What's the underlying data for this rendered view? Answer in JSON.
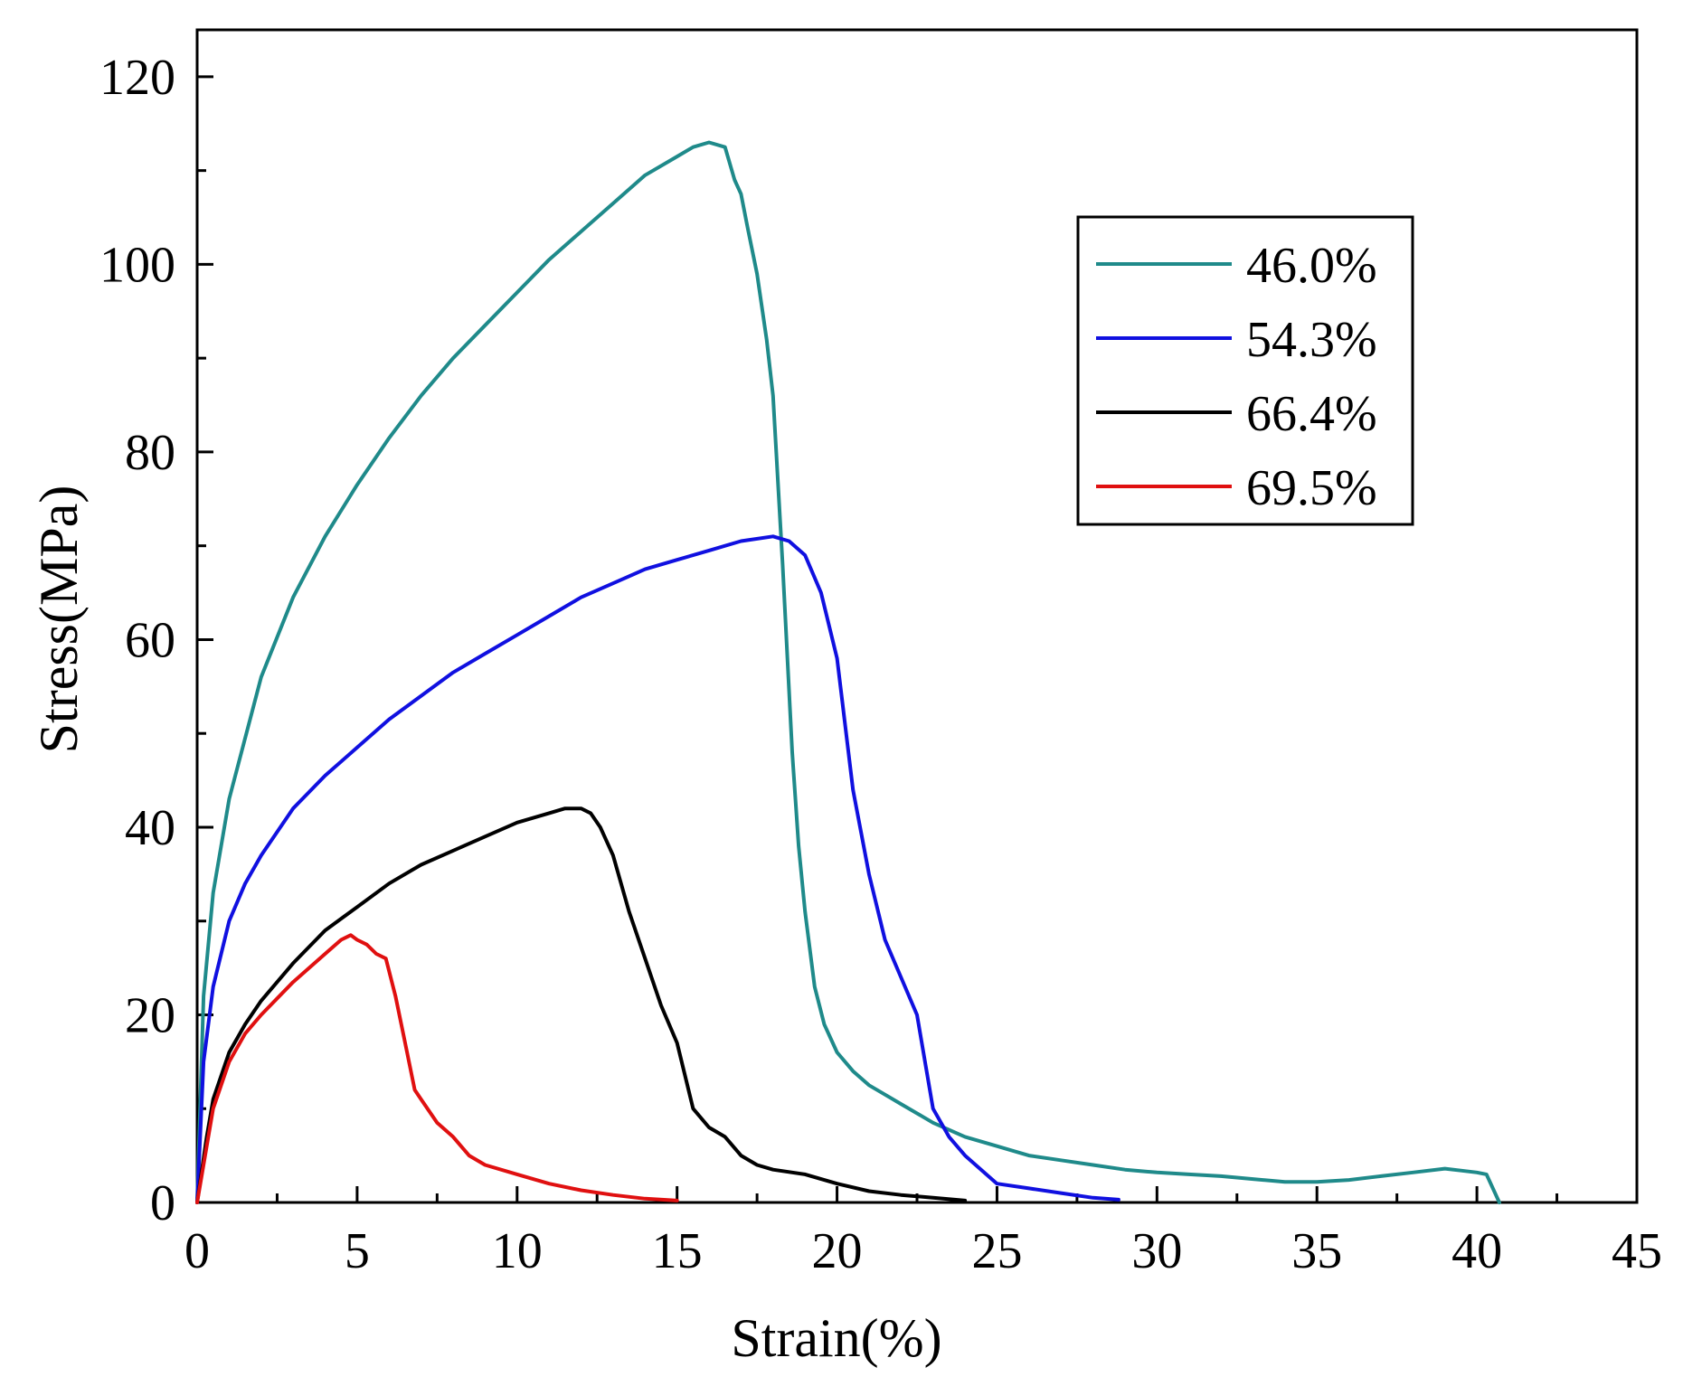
{
  "chart_data": {
    "type": "line",
    "title": "",
    "xlabel": "Strain(%)",
    "ylabel": "Stress(MPa)",
    "xlim": [
      0,
      45
    ],
    "ylim": [
      0,
      125
    ],
    "xticks": [
      0,
      5,
      10,
      15,
      20,
      25,
      30,
      35,
      40,
      45
    ],
    "yticks": [
      0,
      20,
      40,
      60,
      80,
      100,
      120
    ],
    "grid": false,
    "legend_position": "top-right",
    "series": [
      {
        "name": "46.0%",
        "color": "#1f8a8a",
        "x": [
          0,
          0.2,
          0.5,
          1,
          2,
          3,
          4,
          5,
          6,
          7,
          8,
          9,
          10,
          11,
          12,
          13,
          14,
          15,
          15.5,
          16,
          16.5,
          16.8,
          17,
          17.2,
          17.5,
          17.8,
          18,
          18.3,
          18.6,
          18.8,
          19,
          19.3,
          19.6,
          20,
          20.5,
          21,
          21.5,
          22,
          23,
          24,
          25,
          26,
          27,
          28,
          29,
          30,
          31,
          32,
          33,
          34,
          35,
          36,
          37,
          38,
          39,
          39.5,
          40,
          40.3,
          40.5,
          40.7
        ],
        "y": [
          0,
          22,
          33,
          43,
          56,
          64.5,
          71,
          76.5,
          81.5,
          86,
          90,
          93.5,
          97,
          100.5,
          103.5,
          106.5,
          109.5,
          111.5,
          112.5,
          113,
          112.5,
          109,
          107.5,
          104,
          99,
          92,
          86,
          68,
          48,
          38,
          31,
          23,
          19,
          16,
          14,
          12.5,
          11.5,
          10.5,
          8.5,
          7,
          6,
          5,
          4.5,
          4,
          3.5,
          3.2,
          3,
          2.8,
          2.5,
          2.2,
          2.2,
          2.4,
          2.8,
          3.2,
          3.6,
          3.4,
          3.2,
          3.0,
          1.5,
          0
        ]
      },
      {
        "name": "54.3%",
        "color": "#1010e0",
        "x": [
          0,
          0.2,
          0.5,
          1,
          1.5,
          2,
          3,
          4,
          5,
          6,
          7,
          8,
          9,
          10,
          11,
          12,
          13,
          14,
          15,
          16,
          17,
          18,
          18.5,
          19,
          19.5,
          20,
          20.5,
          21,
          21.5,
          22,
          22.5,
          23,
          23.5,
          24,
          24.5,
          25,
          26,
          27,
          28,
          28.8
        ],
        "y": [
          0,
          15,
          23,
          30,
          34,
          37,
          42,
          45.5,
          48.5,
          51.5,
          54,
          56.5,
          58.5,
          60.5,
          62.5,
          64.5,
          66,
          67.5,
          68.5,
          69.5,
          70.5,
          71,
          70.5,
          69,
          65,
          58,
          44,
          35,
          28,
          24,
          20,
          10,
          7,
          5,
          3.5,
          2,
          1.5,
          1,
          0.5,
          0.3
        ]
      },
      {
        "name": "66.4%",
        "color": "#000000",
        "x": [
          0,
          0.3,
          0.5,
          1,
          1.5,
          2,
          3,
          4,
          5,
          6,
          7,
          8,
          9,
          10,
          11,
          11.5,
          12,
          12.3,
          12.6,
          13,
          13.5,
          14,
          14.5,
          15,
          15.5,
          16,
          16.5,
          17,
          17.5,
          18,
          19,
          20,
          21,
          22,
          23,
          24
        ],
        "y": [
          0,
          7,
          11,
          16,
          19,
          21.5,
          25.5,
          29,
          31.5,
          34,
          36,
          37.5,
          39,
          40.5,
          41.5,
          42,
          42,
          41.5,
          40,
          37,
          31,
          26,
          21,
          17,
          10,
          8,
          7,
          5,
          4,
          3.5,
          3,
          2,
          1.2,
          0.8,
          0.5,
          0.2
        ]
      },
      {
        "name": "69.5%",
        "color": "#e01010",
        "x": [
          0,
          0.3,
          0.5,
          1,
          1.5,
          2,
          3,
          4,
          4.5,
          4.8,
          5,
          5.3,
          5.6,
          5.9,
          6.2,
          6.5,
          6.8,
          7,
          7.5,
          8,
          8.5,
          9,
          10,
          11,
          12,
          13,
          14,
          15
        ],
        "y": [
          0,
          6,
          10,
          15,
          18,
          20,
          23.5,
          26.5,
          28,
          28.5,
          28,
          27.5,
          26.5,
          26,
          22,
          17,
          12,
          11,
          8.5,
          7,
          5,
          4,
          3,
          2,
          1.3,
          0.8,
          0.4,
          0.2
        ]
      }
    ]
  }
}
